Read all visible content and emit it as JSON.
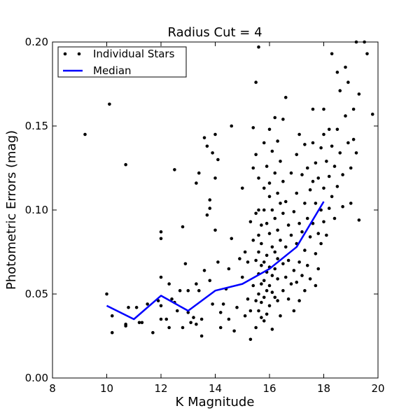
{
  "chart_data": {
    "type": "scatter",
    "title": "Radius Cut = 4",
    "xlabel": "K Magnitude",
    "ylabel": "Photometric Errors (mag)",
    "xlim": [
      8,
      20
    ],
    "ylim": [
      0.0,
      0.2
    ],
    "xticks": [
      "8",
      "10",
      "12",
      "14",
      "16",
      "18",
      "20"
    ],
    "yticks": [
      "0.00",
      "0.05",
      "0.10",
      "0.15",
      "0.20"
    ],
    "grid": false,
    "legend_position": "top-left",
    "colors": {
      "stars": "#000000",
      "median": "#0000ff"
    },
    "series": [
      {
        "name": "Individual Stars",
        "kind": "scatter",
        "points": [
          [
            9.2,
            0.145
          ],
          [
            10.1,
            0.163
          ],
          [
            10.7,
            0.127
          ],
          [
            10.2,
            0.027
          ],
          [
            10.2,
            0.037
          ],
          [
            10.0,
            0.05
          ],
          [
            10.7,
            0.031
          ],
          [
            10.7,
            0.032
          ],
          [
            10.8,
            0.042
          ],
          [
            11.1,
            0.042
          ],
          [
            11.2,
            0.033
          ],
          [
            11.3,
            0.033
          ],
          [
            11.5,
            0.044
          ],
          [
            11.7,
            0.027
          ],
          [
            11.9,
            0.046
          ],
          [
            12.0,
            0.035
          ],
          [
            12.0,
            0.043
          ],
          [
            12.0,
            0.06
          ],
          [
            12.0,
            0.083
          ],
          [
            12.0,
            0.087
          ],
          [
            12.2,
            0.035
          ],
          [
            12.3,
            0.03
          ],
          [
            12.3,
            0.056
          ],
          [
            12.4,
            0.047
          ],
          [
            12.5,
            0.124
          ],
          [
            12.5,
            0.045
          ],
          [
            12.6,
            0.04
          ],
          [
            12.7,
            0.052
          ],
          [
            12.8,
            0.03
          ],
          [
            12.8,
            0.09
          ],
          [
            12.9,
            0.068
          ],
          [
            13.0,
            0.052
          ],
          [
            13.0,
            0.039
          ],
          [
            13.1,
            0.033
          ],
          [
            13.2,
            0.036
          ],
          [
            13.3,
            0.116
          ],
          [
            13.3,
            0.056
          ],
          [
            13.3,
            0.032
          ],
          [
            13.4,
            0.122
          ],
          [
            13.4,
            0.052
          ],
          [
            13.5,
            0.025
          ],
          [
            13.5,
            0.035
          ],
          [
            13.6,
            0.143
          ],
          [
            13.6,
            0.064
          ],
          [
            13.7,
            0.138
          ],
          [
            13.7,
            0.097
          ],
          [
            13.8,
            0.101
          ],
          [
            13.8,
            0.106
          ],
          [
            13.8,
            0.058
          ],
          [
            13.9,
            0.134
          ],
          [
            13.9,
            0.044
          ],
          [
            14.0,
            0.145
          ],
          [
            14.0,
            0.088
          ],
          [
            14.0,
            0.119
          ],
          [
            14.1,
            0.13
          ],
          [
            14.1,
            0.069
          ],
          [
            14.2,
            0.039
          ],
          [
            14.2,
            0.03
          ],
          [
            14.3,
            0.044
          ],
          [
            14.4,
            0.053
          ],
          [
            14.5,
            0.065
          ],
          [
            14.5,
            0.035
          ],
          [
            14.6,
            0.15
          ],
          [
            14.6,
            0.083
          ],
          [
            14.7,
            0.028
          ],
          [
            14.8,
            0.042
          ],
          [
            14.9,
            0.071
          ],
          [
            15.0,
            0.113
          ],
          [
            15.0,
            0.06
          ],
          [
            15.1,
            0.037
          ],
          [
            15.1,
            0.075
          ],
          [
            15.2,
            0.069
          ],
          [
            15.2,
            0.047
          ],
          [
            15.3,
            0.093
          ],
          [
            15.3,
            0.04
          ],
          [
            15.3,
            0.023
          ],
          [
            15.4,
            0.125
          ],
          [
            15.4,
            0.149
          ],
          [
            15.4,
            0.082
          ],
          [
            15.4,
            0.055
          ],
          [
            15.5,
            0.176
          ],
          [
            15.5,
            0.133
          ],
          [
            15.5,
            0.098
          ],
          [
            15.5,
            0.07
          ],
          [
            15.5,
            0.046
          ],
          [
            15.5,
            0.03
          ],
          [
            15.6,
            0.197
          ],
          [
            15.6,
            0.119
          ],
          [
            15.6,
            0.1
          ],
          [
            15.6,
            0.085
          ],
          [
            15.6,
            0.075
          ],
          [
            15.6,
            0.062
          ],
          [
            15.6,
            0.05
          ],
          [
            15.6,
            0.04
          ],
          [
            15.7,
            0.091
          ],
          [
            15.7,
            0.08
          ],
          [
            15.7,
            0.067
          ],
          [
            15.7,
            0.056
          ],
          [
            15.7,
            0.045
          ],
          [
            15.7,
            0.036
          ],
          [
            15.8,
            0.14
          ],
          [
            15.8,
            0.113
          ],
          [
            15.8,
            0.1
          ],
          [
            15.8,
            0.069
          ],
          [
            15.8,
            0.058
          ],
          [
            15.8,
            0.048
          ],
          [
            15.8,
            0.034
          ],
          [
            15.9,
            0.126
          ],
          [
            15.9,
            0.092
          ],
          [
            15.9,
            0.073
          ],
          [
            15.9,
            0.063
          ],
          [
            15.9,
            0.052
          ],
          [
            15.9,
            0.038
          ],
          [
            16.0,
            0.148
          ],
          [
            16.0,
            0.116
          ],
          [
            16.0,
            0.108
          ],
          [
            16.0,
            0.086
          ],
          [
            16.0,
            0.066
          ],
          [
            16.0,
            0.055
          ],
          [
            16.0,
            0.043
          ],
          [
            16.1,
            0.135
          ],
          [
            16.1,
            0.1
          ],
          [
            16.1,
            0.078
          ],
          [
            16.1,
            0.061
          ],
          [
            16.1,
            0.051
          ],
          [
            16.1,
            0.029
          ],
          [
            16.2,
            0.155
          ],
          [
            16.2,
            0.122
          ],
          [
            16.2,
            0.095
          ],
          [
            16.2,
            0.075
          ],
          [
            16.2,
            0.065
          ],
          [
            16.2,
            0.048
          ],
          [
            16.3,
            0.141
          ],
          [
            16.3,
            0.11
          ],
          [
            16.3,
            0.088
          ],
          [
            16.3,
            0.071
          ],
          [
            16.3,
            0.059
          ],
          [
            16.3,
            0.046
          ],
          [
            16.4,
            0.129
          ],
          [
            16.4,
            0.104
          ],
          [
            16.4,
            0.082
          ],
          [
            16.4,
            0.037
          ],
          [
            16.5,
            0.154
          ],
          [
            16.5,
            0.117
          ],
          [
            16.5,
            0.098
          ],
          [
            16.5,
            0.068
          ],
          [
            16.5,
            0.052
          ],
          [
            16.6,
            0.167
          ],
          [
            16.6,
            0.105
          ],
          [
            16.6,
            0.078
          ],
          [
            16.6,
            0.06
          ],
          [
            16.7,
            0.091
          ],
          [
            16.7,
            0.07
          ],
          [
            16.7,
            0.047
          ],
          [
            16.8,
            0.122
          ],
          [
            16.8,
            0.085
          ],
          [
            16.8,
            0.056
          ],
          [
            16.9,
            0.099
          ],
          [
            16.9,
            0.064
          ],
          [
            16.9,
            0.04
          ],
          [
            17.0,
            0.133
          ],
          [
            17.0,
            0.11
          ],
          [
            17.0,
            0.08
          ],
          [
            17.0,
            0.057
          ],
          [
            17.1,
            0.145
          ],
          [
            17.1,
            0.092
          ],
          [
            17.1,
            0.069
          ],
          [
            17.1,
            0.046
          ],
          [
            17.2,
            0.121
          ],
          [
            17.2,
            0.087
          ],
          [
            17.2,
            0.061
          ],
          [
            17.3,
            0.139
          ],
          [
            17.3,
            0.104
          ],
          [
            17.3,
            0.076
          ],
          [
            17.3,
            0.052
          ],
          [
            17.4,
            0.125
          ],
          [
            17.4,
            0.095
          ],
          [
            17.4,
            0.067
          ],
          [
            17.5,
            0.112
          ],
          [
            17.5,
            0.084
          ],
          [
            17.5,
            0.059
          ],
          [
            17.6,
            0.16
          ],
          [
            17.6,
            0.14
          ],
          [
            17.6,
            0.117
          ],
          [
            17.6,
            0.092
          ],
          [
            17.7,
            0.128
          ],
          [
            17.7,
            0.104
          ],
          [
            17.7,
            0.074
          ],
          [
            17.7,
            0.055
          ],
          [
            17.8,
            0.119
          ],
          [
            17.8,
            0.086
          ],
          [
            17.8,
            0.065
          ],
          [
            17.9,
            0.137
          ],
          [
            17.9,
            0.1
          ],
          [
            17.9,
            0.08
          ],
          [
            18.0,
            0.16
          ],
          [
            18.0,
            0.145
          ],
          [
            18.0,
            0.113
          ],
          [
            18.0,
            0.093
          ],
          [
            18.1,
            0.129
          ],
          [
            18.1,
            0.085
          ],
          [
            18.2,
            0.148
          ],
          [
            18.2,
            0.12
          ],
          [
            18.2,
            0.101
          ],
          [
            18.3,
            0.193
          ],
          [
            18.3,
            0.138
          ],
          [
            18.3,
            0.108
          ],
          [
            18.4,
            0.126
          ],
          [
            18.4,
            0.095
          ],
          [
            18.5,
            0.182
          ],
          [
            18.5,
            0.148
          ],
          [
            18.5,
            0.114
          ],
          [
            18.6,
            0.171
          ],
          [
            18.6,
            0.134
          ],
          [
            18.7,
            0.121
          ],
          [
            18.7,
            0.102
          ],
          [
            18.8,
            0.185
          ],
          [
            18.8,
            0.156
          ],
          [
            18.9,
            0.176
          ],
          [
            18.9,
            0.14
          ],
          [
            19.0,
            0.125
          ],
          [
            19.0,
            0.104
          ],
          [
            19.1,
            0.16
          ],
          [
            19.1,
            0.142
          ],
          [
            19.2,
            0.2
          ],
          [
            19.2,
            0.134
          ],
          [
            19.3,
            0.169
          ],
          [
            19.3,
            0.094
          ],
          [
            19.5,
            0.2
          ],
          [
            19.6,
            0.193
          ],
          [
            19.8,
            0.157
          ]
        ]
      },
      {
        "name": "Median",
        "kind": "line",
        "points": [
          [
            10.0,
            0.043
          ],
          [
            11.0,
            0.035
          ],
          [
            12.0,
            0.049
          ],
          [
            13.0,
            0.04
          ],
          [
            14.0,
            0.052
          ],
          [
            15.0,
            0.056
          ],
          [
            16.0,
            0.065
          ],
          [
            17.0,
            0.078
          ],
          [
            18.0,
            0.105
          ]
        ]
      }
    ]
  }
}
